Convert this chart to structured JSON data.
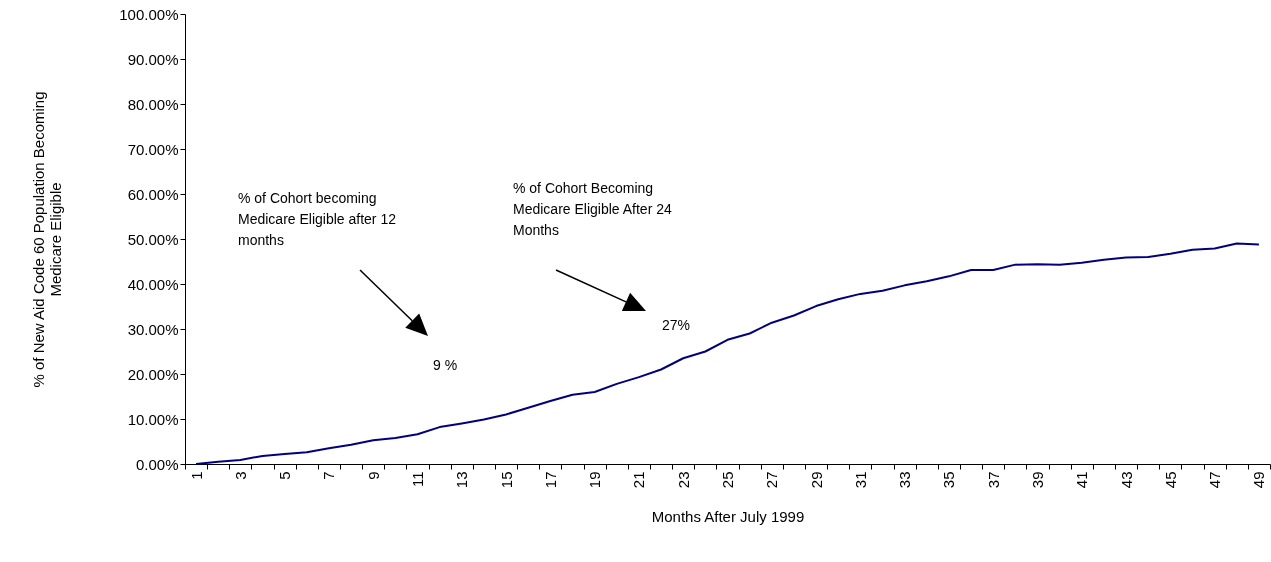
{
  "chart_data": {
    "type": "line",
    "xlabel": "Months After July 1999",
    "ylabel": "% of New Aid Code 60 Population Becoming Medicare Eligible",
    "categories": [
      "1",
      null,
      "3",
      null,
      "5",
      null,
      "7",
      null,
      "9",
      null,
      "11",
      null,
      "13",
      null,
      "15",
      null,
      "17",
      null,
      "19",
      null,
      "21",
      null,
      "23",
      null,
      "25",
      null,
      "27",
      null,
      "29",
      null,
      "31",
      null,
      "33",
      null,
      "35",
      null,
      "37",
      null,
      "39",
      null,
      "41",
      null,
      "43",
      null,
      "45",
      null,
      "47",
      null,
      "49"
    ],
    "series": [
      {
        "color": "#000080",
        "values": [
          0,
          0.5,
          0.9,
          1.8,
          2.2,
          2.6,
          3.5,
          4.3,
          5.3,
          5.8,
          6.6,
          8.2,
          9.0,
          9.9,
          11.0,
          12.5,
          14.0,
          15.4,
          16.0,
          17.8,
          19.3,
          21.0,
          23.5,
          25.0,
          27.6,
          29.0,
          31.4,
          33.0,
          35.1,
          36.6,
          37.8,
          38.5,
          39.7,
          40.6,
          41.7,
          43.1,
          43.1,
          44.3,
          44.4,
          44.3,
          44.7,
          45.4,
          45.9,
          46.0,
          46.7,
          47.6,
          47.9,
          49.0,
          48.8
        ]
      }
    ],
    "ylim": [
      0,
      100
    ],
    "yticks": [
      {
        "value": 0,
        "label": "0.00%"
      },
      {
        "value": 10,
        "label": "10.00%"
      },
      {
        "value": 20,
        "label": "20.00%"
      },
      {
        "value": 30,
        "label": "30.00%"
      },
      {
        "value": 40,
        "label": "40.00%"
      },
      {
        "value": 50,
        "label": "50.00%"
      },
      {
        "value": 60,
        "label": "60.00%"
      },
      {
        "value": 70,
        "label": "70.00%"
      },
      {
        "value": 80,
        "label": "80.00%"
      },
      {
        "value": 90,
        "label": "90.00%"
      },
      {
        "value": 100,
        "label": "100.00%"
      }
    ],
    "grid": false,
    "annotations": [
      "% of Cohort becoming Medicare Eligible after 12 months",
      "% of Cohort Becoming Medicare Eligible After 24 Months",
      "9 %",
      "27%"
    ]
  }
}
